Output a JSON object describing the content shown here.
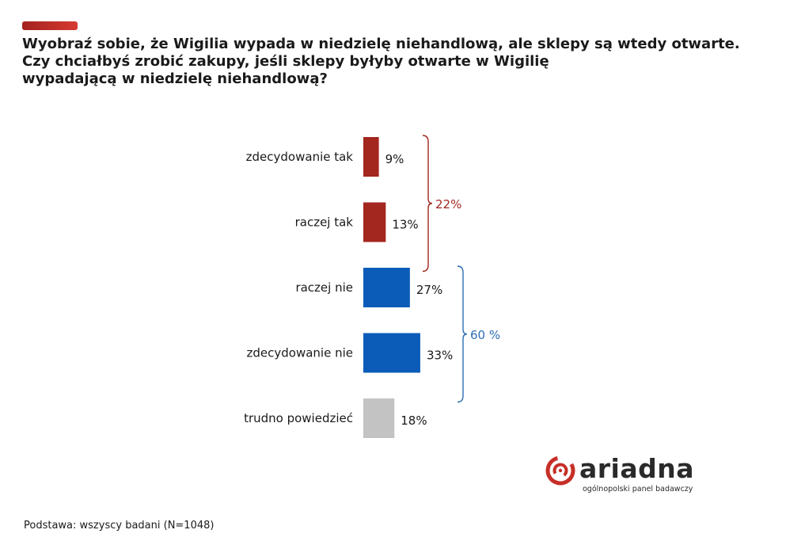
{
  "header": {
    "title_lines": [
      "Wyobraź sobie, że Wigilia wypada w niedzielę niehandlową, ale sklepy są wtedy otwarte.",
      "Czy chciałbyś zrobić zakupy, jeśli sklepy byłyby otwarte w Wigilię",
      "wypadającą w niedzielę niehandlową?"
    ]
  },
  "chart_data": {
    "type": "bar",
    "orientation": "horizontal",
    "categories": [
      "zdecydowanie tak",
      "raczej tak",
      "raczej nie",
      "zdecydowanie nie",
      "trudno powiedzieć"
    ],
    "values": [
      9,
      13,
      27,
      33,
      18
    ],
    "value_labels": [
      "9%",
      "13%",
      "27%",
      "33%",
      "18%"
    ],
    "bar_colors": [
      "#a3261f",
      "#a3261f",
      "#0a5cb8",
      "#0a5cb8",
      "#c3c3c3"
    ],
    "title": "",
    "xlabel": "",
    "ylabel": "",
    "xlim": [
      0,
      100
    ],
    "grid": false,
    "legend": "none",
    "groups": [
      {
        "label": "22%",
        "from": 0,
        "to": 1,
        "color": "#a3261f"
      },
      {
        "label": "60 %",
        "from": 2,
        "to": 3,
        "color": "#2f6fb5"
      }
    ]
  },
  "footer": {
    "base_text": "Podstawa: wszyscy badani (N=1048)"
  },
  "logo": {
    "word": "ariadna",
    "tagline": "ogólnopolski panel badawczy",
    "icon": "ariadna-spiral-icon",
    "color": "#c62f27"
  }
}
